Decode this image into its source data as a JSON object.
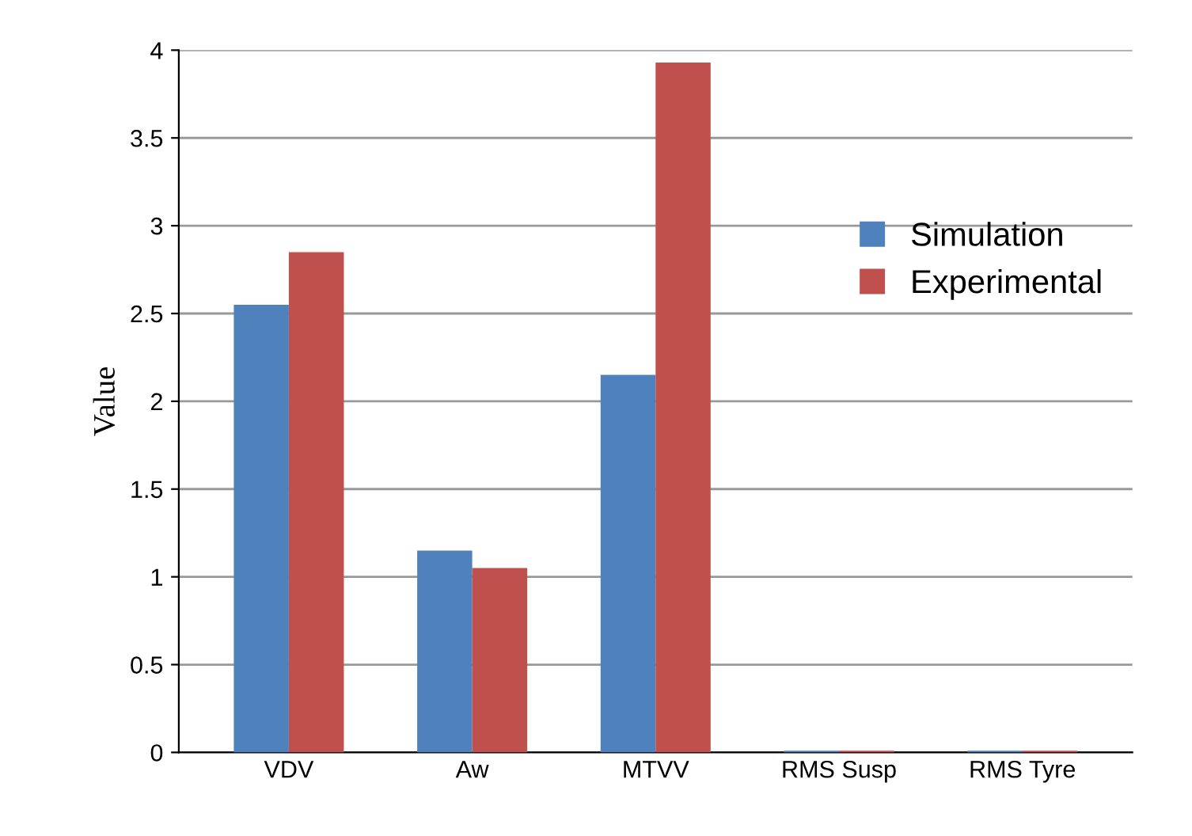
{
  "chart_data": {
    "type": "bar",
    "ylabel": "Value",
    "categories": [
      "VDV",
      "Aw",
      "MTVV",
      "RMS Susp",
      "RMS Tyre"
    ],
    "series": [
      {
        "name": "Simulation",
        "color": "#4f81bd",
        "values": [
          2.55,
          1.15,
          2.15,
          0.01,
          0.01
        ]
      },
      {
        "name": "Experimental",
        "color": "#c0504d",
        "values": [
          2.85,
          1.05,
          3.93,
          0.01,
          0.01
        ]
      }
    ],
    "ylim": [
      0,
      4
    ],
    "yticks": [
      0,
      0.5,
      1,
      1.5,
      2,
      2.5,
      3,
      3.5,
      4
    ],
    "grid": "y",
    "legend": "right"
  }
}
